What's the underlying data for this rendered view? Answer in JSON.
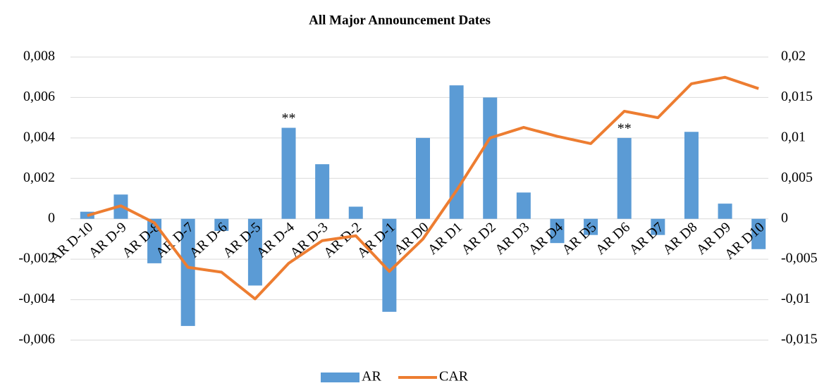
{
  "chart_data": {
    "type": "bar-line",
    "title": "All Major Announcement Dates",
    "categories": [
      "AR D-10",
      "AR D-9",
      "AR D-8",
      "AR D-7",
      "AR D-6",
      "AR D-5",
      "AR D-4",
      "AR D-3",
      "AR D-2",
      "AR D-1",
      "AR D0",
      "AR D1",
      "AR D2",
      "AR D3",
      "AR D4",
      "AR D5",
      "AR D6",
      "AR D7",
      "AR D8",
      "AR D9",
      "AR D10"
    ],
    "series": [
      {
        "name": "AR",
        "type": "bar",
        "color": "#5b9bd5",
        "axis": "y",
        "values": [
          0.00035,
          0.0012,
          -0.0022,
          -0.0053,
          -0.0006,
          -0.0033,
          0.0045,
          0.0027,
          0.0006,
          -0.0046,
          0.004,
          0.0066,
          0.006,
          0.0013,
          -0.0012,
          -0.0008,
          0.004,
          -0.0008,
          0.0043,
          0.00075,
          -0.0015
        ]
      },
      {
        "name": "CAR",
        "type": "line",
        "color": "#ed7d31",
        "axis": "y2",
        "values": [
          0.0004,
          0.0016,
          -0.0005,
          -0.006,
          -0.0066,
          -0.0099,
          -0.0055,
          -0.0027,
          -0.0021,
          -0.0065,
          -0.0025,
          0.0035,
          0.01,
          0.0113,
          0.0102,
          0.0093,
          0.0133,
          0.0125,
          0.0167,
          0.0175,
          0.0161
        ]
      }
    ],
    "ylim": [
      -0.006,
      0.008
    ],
    "yticks": [
      {
        "value": 0.008,
        "label": "0,008"
      },
      {
        "value": 0.006,
        "label": "0,006"
      },
      {
        "value": 0.004,
        "label": "0,004"
      },
      {
        "value": 0.002,
        "label": "0,002"
      },
      0,
      {
        "value": -0.002,
        "label": "-0,002"
      },
      {
        "value": -0.004,
        "label": "-0,004"
      },
      {
        "value": -0.006,
        "label": "-0,006"
      }
    ],
    "y2lim": [
      -0.015,
      0.02
    ],
    "y2ticks": [
      {
        "value": 0.02,
        "label": "0,02"
      },
      {
        "value": 0.015,
        "label": "0,015"
      },
      {
        "value": 0.01,
        "label": "0,01"
      },
      {
        "value": 0.005,
        "label": "0,005"
      },
      0,
      {
        "value": -0.005,
        "label": "-0,005"
      },
      {
        "value": -0.01,
        "label": "-0,01"
      },
      {
        "value": -0.015,
        "label": "-0,015"
      }
    ],
    "grid": true,
    "legend": "bottom",
    "annotations": [
      {
        "text": "**",
        "category": "AR D-4"
      },
      {
        "text": "**",
        "category": "AR D6"
      }
    ]
  }
}
